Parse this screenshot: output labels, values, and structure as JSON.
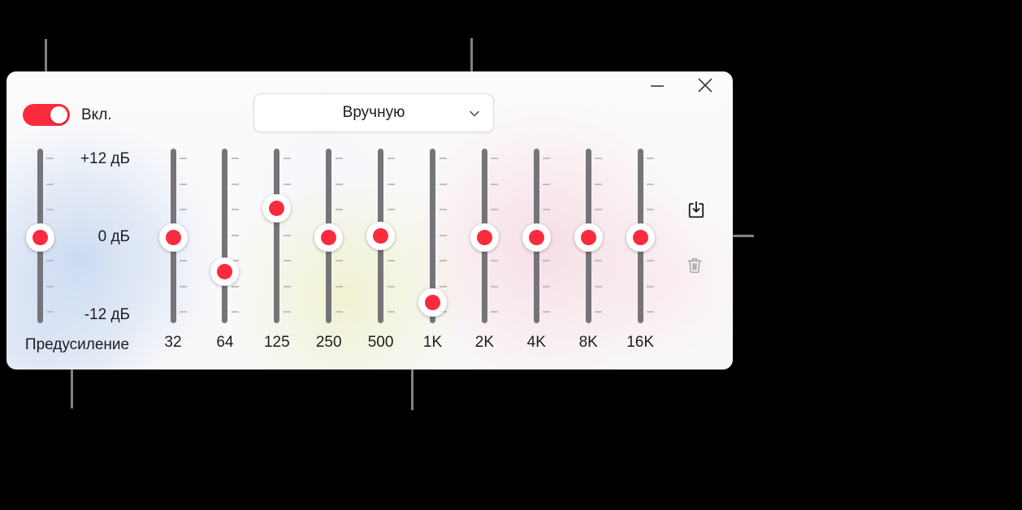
{
  "equalizer_window": {
    "power_toggle": {
      "state": "on",
      "label": "Вкл."
    },
    "preset_dropdown": {
      "value": "Вручную",
      "chevron_icon": "chevron-down-icon"
    },
    "window_controls": {
      "minimize_icon": "minimize-icon",
      "close_icon": "close-icon"
    },
    "db_scale": {
      "max": "+12 дБ",
      "zero": "0 дБ",
      "min": "-12 дБ",
      "range_db": [
        -12,
        12
      ]
    },
    "preamp": {
      "label": "Предусиление",
      "value_db": 0
    },
    "bands": [
      {
        "label": "32",
        "value_db": 0
      },
      {
        "label": "64",
        "value_db": -5.25
      },
      {
        "label": "125",
        "value_db": 4.5
      },
      {
        "label": "250",
        "value_db": 0
      },
      {
        "label": "500",
        "value_db": 0.25
      },
      {
        "label": "1K",
        "value_db": -10.1
      },
      {
        "label": "2K",
        "value_db": 0
      },
      {
        "label": "4K",
        "value_db": 0
      },
      {
        "label": "8K",
        "value_db": 0
      },
      {
        "label": "16K",
        "value_db": 0
      }
    ],
    "actions": {
      "save_icon": "save-preset-icon",
      "delete_icon": "trash-icon"
    },
    "colors": {
      "accent_red": "#fa2b3d",
      "track_gray": "#757579",
      "callout_gray": "#828282",
      "text": "#1d1d1f"
    }
  },
  "annotations": {
    "callouts": [
      {
        "target": "power-toggle"
      },
      {
        "target": "preset-dropdown"
      },
      {
        "target": "band-16k-thumb"
      },
      {
        "target": "preamp-label"
      },
      {
        "target": "frequency-row"
      }
    ]
  }
}
